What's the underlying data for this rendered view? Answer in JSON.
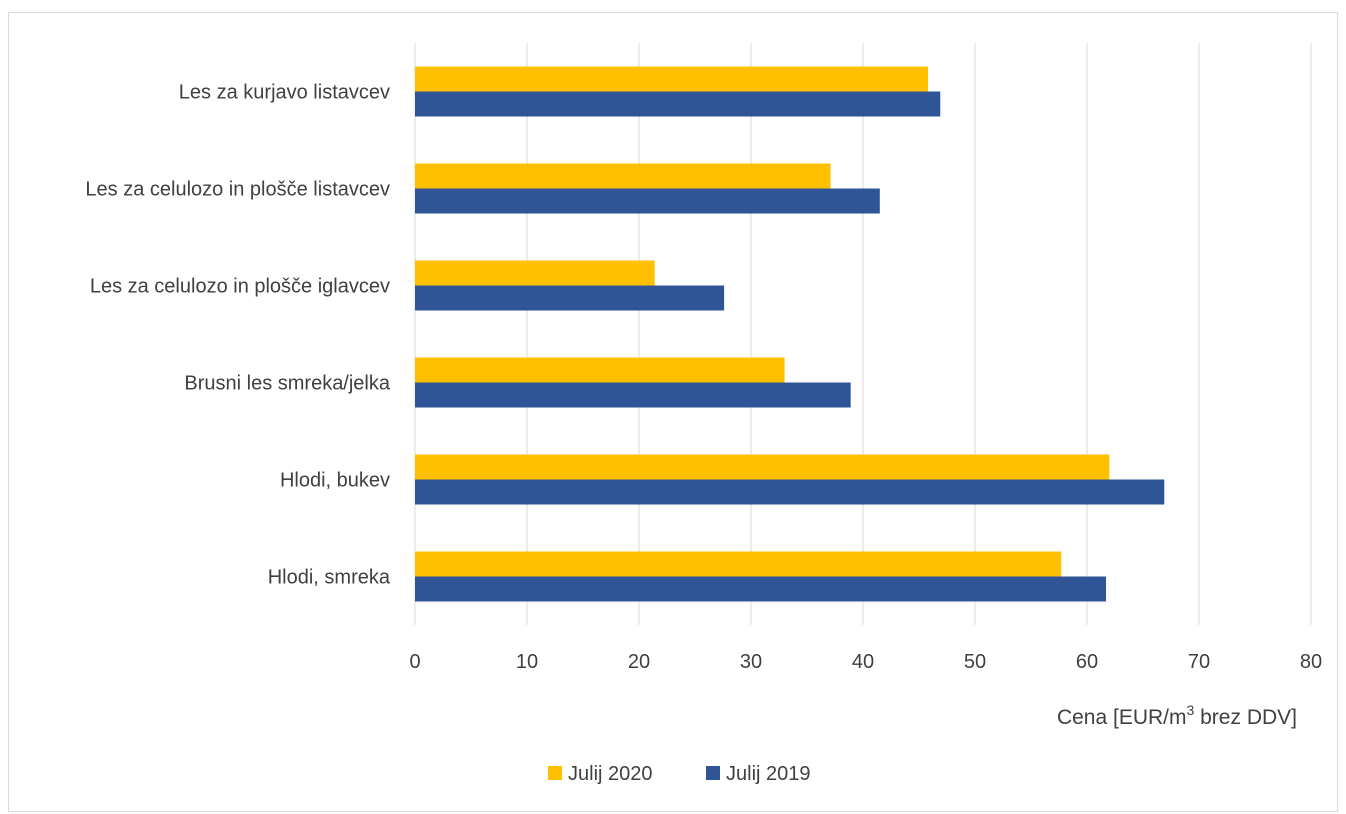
{
  "chart_data": {
    "type": "bar",
    "orientation": "horizontal",
    "categories": [
      "Les za kurjavo listavcev",
      "Les za celulozo in plošče listavcev",
      "Les za celulozo in plošče iglavcev",
      "Brusni les smreka/jelka",
      "Hlodi, bukev",
      "Hlodi, smreka"
    ],
    "series": [
      {
        "name": "Julij 2020",
        "color": "#FFC000",
        "values": [
          45.8,
          37.1,
          21.4,
          33.0,
          62.0,
          57.7
        ]
      },
      {
        "name": "Julij 2019",
        "color": "#2F5597",
        "values": [
          46.9,
          41.5,
          27.6,
          38.9,
          66.9,
          61.7
        ]
      }
    ],
    "xlim": [
      0,
      80
    ],
    "xticks": [
      "0",
      "10",
      "20",
      "30",
      "40",
      "50",
      "60",
      "70",
      "80"
    ],
    "xlabel_main": "Cena [EUR/m",
    "xlabel_sup": "3",
    "xlabel_rest": " brez DDV]",
    "grid": true,
    "legend": "bottom"
  }
}
